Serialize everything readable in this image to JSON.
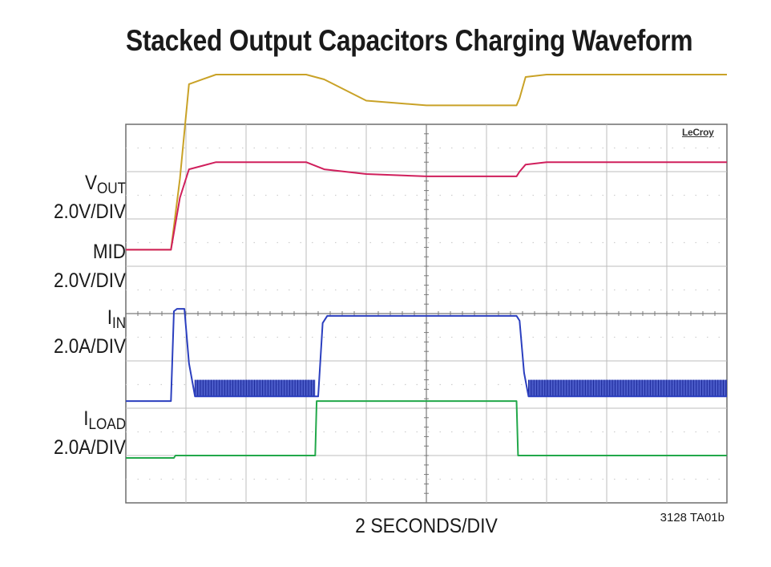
{
  "title": "Stacked Output Capacitors Charging Waveform",
  "brand": "LeCroy",
  "figure_id": "3128 TA01b",
  "chart_data": {
    "type": "line",
    "xlabel": "2 SECONDS/DIV",
    "x_unit": "s",
    "xlim": [
      0,
      20
    ],
    "grid": true,
    "grid_divisions": {
      "x": 10,
      "y": 8
    },
    "colors": {
      "vout": "#c9a227",
      "mid": "#d01f5c",
      "iin": "#2b3fbf",
      "iload": "#22a84a",
      "grid": "#bdbdbd",
      "frame": "#6e6e6e"
    },
    "channel_labels": [
      {
        "id": "vout",
        "name": "V",
        "sub": "OUT",
        "scale": "2.0V/DIV"
      },
      {
        "id": "mid",
        "name": "MID",
        "sub": "",
        "scale": "2.0V/DIV"
      },
      {
        "id": "iin",
        "name": "I",
        "sub": "IN",
        "scale": "2.0A/DIV"
      },
      {
        "id": "iload",
        "name": "I",
        "sub": "LOAD",
        "scale": "2.0A/DIV"
      }
    ],
    "series": [
      {
        "id": "vout",
        "unit": "V",
        "ref_div": 5.35,
        "div_scale": 2.0,
        "x": [
          0,
          1.5,
          1.8,
          2.1,
          3,
          6,
          6.6,
          8,
          10,
          12,
          13,
          13.1,
          13.3,
          14,
          20
        ],
        "y": [
          0,
          0,
          3.0,
          7.0,
          7.4,
          7.4,
          7.2,
          6.3,
          6.1,
          6.1,
          6.1,
          6.4,
          7.3,
          7.4,
          7.4
        ]
      },
      {
        "id": "mid",
        "unit": "V",
        "ref_div": 5.35,
        "div_scale": 2.0,
        "x": [
          0,
          1.5,
          1.8,
          2.1,
          3,
          6,
          6.6,
          8,
          10,
          12,
          13,
          13.1,
          13.3,
          14,
          20
        ],
        "y": [
          0,
          0,
          2.2,
          3.4,
          3.7,
          3.7,
          3.4,
          3.2,
          3.1,
          3.1,
          3.1,
          3.3,
          3.6,
          3.7,
          3.7
        ]
      },
      {
        "id": "iin",
        "unit": "A",
        "ref_div": 2.15,
        "div_scale": 2.0,
        "x": [
          0,
          1.5,
          1.6,
          1.7,
          1.95,
          2.1,
          2.3,
          6.3,
          6.4,
          6.55,
          6.7,
          13,
          13.1,
          13.25,
          13.4,
          20
        ],
        "y": [
          0,
          0,
          3.8,
          3.9,
          3.9,
          1.6,
          0.2,
          0.2,
          0.2,
          3.3,
          3.6,
          3.6,
          3.4,
          1.2,
          0.2,
          0.2
        ]
      },
      {
        "id": "iload",
        "unit": "A",
        "ref_div": 0.95,
        "div_scale": 2.0,
        "x": [
          0,
          1.6,
          1.65,
          6.3,
          6.35,
          13,
          13.05,
          20
        ],
        "y": [
          0,
          0,
          0.1,
          0.1,
          2.4,
          2.4,
          0.1,
          0.1
        ]
      }
    ],
    "switching_ripple": {
      "series": "iin",
      "intervals": [
        [
          2.3,
          6.3
        ],
        [
          13.4,
          20
        ]
      ],
      "low": 0.2,
      "high": 0.9
    }
  }
}
